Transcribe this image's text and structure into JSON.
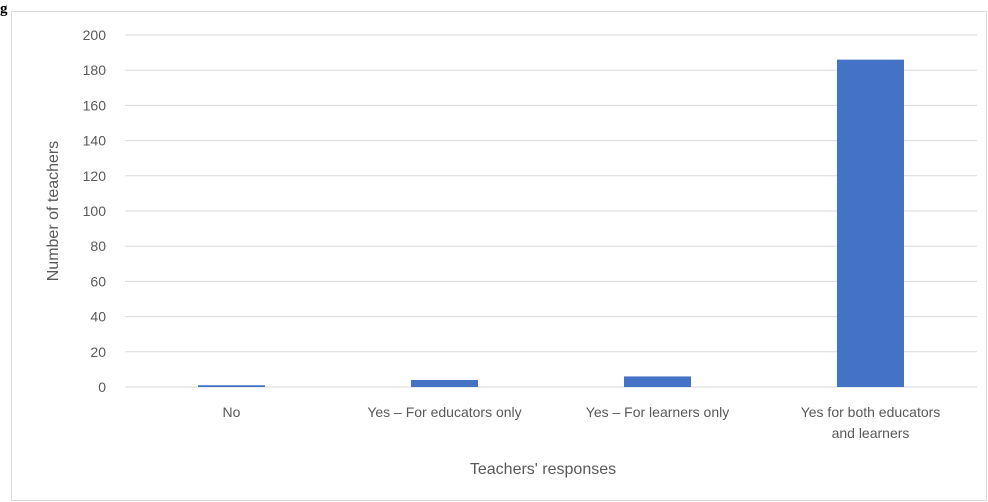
{
  "caption_fragment": "g",
  "chart_data": {
    "type": "bar",
    "categories": [
      [
        "No"
      ],
      [
        "Yes – For educators only"
      ],
      [
        "Yes – For learners only"
      ],
      [
        "Yes for both educators",
        "and learners"
      ]
    ],
    "values": [
      1,
      4,
      6,
      186
    ],
    "xlabel": "Teachers' responses",
    "ylabel": "Number of teachers",
    "ylim": [
      0,
      200
    ],
    "y_ticks": [
      0,
      20,
      40,
      60,
      80,
      100,
      120,
      140,
      160,
      180,
      200
    ],
    "grid": true,
    "bar_color": "#4472c4",
    "gridline_color": "#d9d9d9",
    "text_color": "#595959"
  }
}
